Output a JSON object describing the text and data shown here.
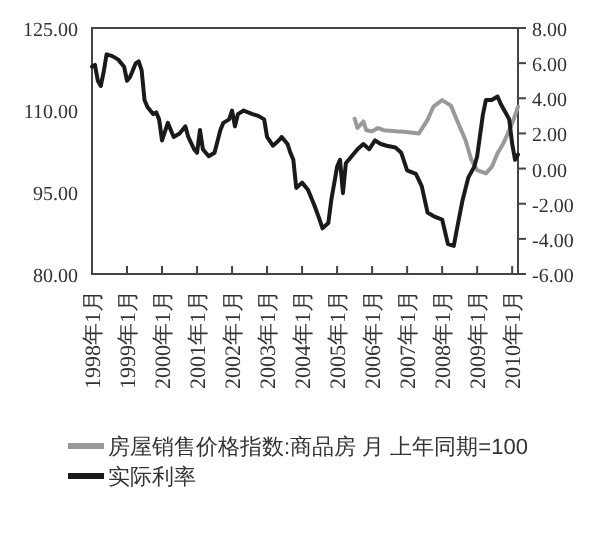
{
  "chart_data": {
    "type": "line",
    "xlim": [
      "1998-01",
      "2010-03"
    ],
    "xticks": [
      {
        "value": "1998-01",
        "label": "1998年1月"
      },
      {
        "value": "1999-01",
        "label": "1999年1月"
      },
      {
        "value": "2000-01",
        "label": "2000年1月"
      },
      {
        "value": "2001-01",
        "label": "2001年1月"
      },
      {
        "value": "2002-01",
        "label": "2002年1月"
      },
      {
        "value": "2003-01",
        "label": "2003年1月"
      },
      {
        "value": "2004-01",
        "label": "2004年1月"
      },
      {
        "value": "2005-01",
        "label": "2005年1月"
      },
      {
        "value": "2006-01",
        "label": "2006年1月"
      },
      {
        "value": "2007-01",
        "label": "2007年1月"
      },
      {
        "value": "2008-01",
        "label": "2008年1月"
      },
      {
        "value": "2009-01",
        "label": "2009年1月"
      },
      {
        "value": "2010-01",
        "label": "2010年1月"
      }
    ],
    "ylim": [
      80,
      125
    ],
    "yticks": [
      {
        "value": 80,
        "label": "80.00"
      },
      {
        "value": 95,
        "label": "95.00"
      },
      {
        "value": 110,
        "label": "110.00"
      },
      {
        "value": 125,
        "label": "125.00"
      }
    ],
    "y2lim": [
      -6,
      8
    ],
    "y2ticks": [
      {
        "value": -6,
        "label": "-6.00"
      },
      {
        "value": -4,
        "label": "-4.00"
      },
      {
        "value": -2,
        "label": "-2.00"
      },
      {
        "value": 0,
        "label": "0.00"
      },
      {
        "value": 2,
        "label": "2.00"
      },
      {
        "value": 4,
        "label": "4.00"
      },
      {
        "value": 6,
        "label": "6.00"
      },
      {
        "value": 8,
        "label": "8.00"
      }
    ],
    "legend": "bottom",
    "series": [
      {
        "name": "房屋销售价格指数:商品房 月 上年同期=100",
        "color": "#999999",
        "axis": "y",
        "x": [
          "2005-07",
          "2005-08",
          "2005-10",
          "2005-11",
          "2006-01",
          "2006-03",
          "2006-05",
          "2006-09",
          "2006-12",
          "2007-05",
          "2007-08",
          "2007-10",
          "2008-01",
          "2008-04",
          "2008-06",
          "2008-09",
          "2008-11",
          "2009-01",
          "2009-04",
          "2009-06",
          "2009-08",
          "2009-10",
          "2010-01",
          "2010-03"
        ],
        "values": [
          108.4,
          106.7,
          107.9,
          106.3,
          106.1,
          106.7,
          106.3,
          106.1,
          106.0,
          105.7,
          108.2,
          110.6,
          111.8,
          110.8,
          108.2,
          104.5,
          100.9,
          99.0,
          98.4,
          99.6,
          102.1,
          103.9,
          107.5,
          110.6
        ]
      },
      {
        "name": "实际利率",
        "color": "#1a1a1a",
        "axis": "y2",
        "x": [
          "1998-01",
          "1998-02",
          "1998-03",
          "1998-04",
          "1998-05",
          "1998-06",
          "1998-08",
          "1998-10",
          "1998-12",
          "1999-01",
          "1999-02",
          "1999-04",
          "1999-05",
          "1999-06",
          "1999-07",
          "1999-08",
          "1999-10",
          "1999-11",
          "1999-12",
          "2000-01",
          "2000-03",
          "2000-04",
          "2000-05",
          "2000-07",
          "2000-09",
          "2000-10",
          "2000-12",
          "2001-01",
          "2001-02",
          "2001-03",
          "2001-04",
          "2001-05",
          "2001-07",
          "2001-09",
          "2001-10",
          "2001-12",
          "2002-01",
          "2002-02",
          "2002-03",
          "2002-05",
          "2002-08",
          "2002-10",
          "2002-12",
          "2003-01",
          "2003-03",
          "2003-05",
          "2003-06",
          "2003-08",
          "2003-09",
          "2003-10",
          "2003-11",
          "2004-01",
          "2004-03",
          "2004-05",
          "2004-07",
          "2004-08",
          "2004-10",
          "2004-11",
          "2005-01",
          "2005-02",
          "2005-03",
          "2005-04",
          "2005-06",
          "2005-08",
          "2005-10",
          "2005-12",
          "2006-02",
          "2006-04",
          "2006-06",
          "2006-09",
          "2006-11",
          "2007-01",
          "2007-04",
          "2007-06",
          "2007-08",
          "2007-10",
          "2008-01",
          "2008-03",
          "2008-05",
          "2008-06",
          "2008-08",
          "2008-10",
          "2008-12",
          "2009-01",
          "2009-03",
          "2009-04",
          "2009-06",
          "2009-08",
          "2009-09",
          "2009-12",
          "2010-01",
          "2010-02",
          "2010-03"
        ],
        "values": [
          5.8,
          5.9,
          5.0,
          4.7,
          5.5,
          6.5,
          6.4,
          6.2,
          5.8,
          5.0,
          5.2,
          6.0,
          6.1,
          5.6,
          3.9,
          3.5,
          3.1,
          3.2,
          2.8,
          1.6,
          2.6,
          2.2,
          1.8,
          2.0,
          2.4,
          1.8,
          1.1,
          0.9,
          2.2,
          1.1,
          0.9,
          0.7,
          0.9,
          2.2,
          2.6,
          2.8,
          3.3,
          2.4,
          3.1,
          3.3,
          3.1,
          3.0,
          2.8,
          1.8,
          1.3,
          1.6,
          1.8,
          1.4,
          0.9,
          0.5,
          -1.1,
          -0.8,
          -1.2,
          -2.0,
          -2.9,
          -3.4,
          -3.1,
          -1.8,
          0.1,
          0.5,
          -1.4,
          0.3,
          0.7,
          1.1,
          1.4,
          1.1,
          1.6,
          1.4,
          1.3,
          1.2,
          0.9,
          -0.1,
          -0.3,
          -1.0,
          -2.5,
          -2.7,
          -2.9,
          -4.3,
          -4.4,
          -3.5,
          -1.8,
          -0.5,
          0.1,
          0.7,
          3.1,
          3.9,
          3.9,
          4.1,
          3.7,
          2.8,
          1.4,
          0.5,
          0.8
        ]
      }
    ]
  }
}
